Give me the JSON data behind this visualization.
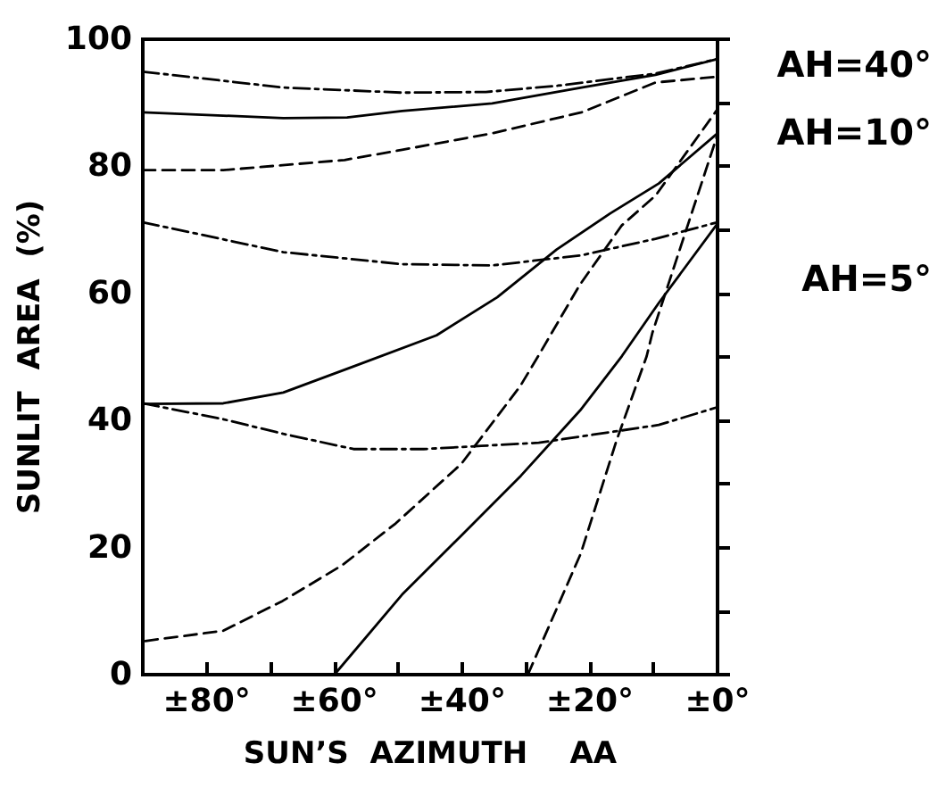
{
  "chart_data": {
    "type": "line",
    "xlabel": "SUN’S  AZIMUTH    AA",
    "ylabel": "SUNLIT  AREA  (%)",
    "xlim": [
      90,
      0
    ],
    "ylim": [
      0,
      100
    ],
    "xticks": [
      {
        "value": 80,
        "label": "±80°"
      },
      {
        "value": 70,
        "label": null
      },
      {
        "value": 60,
        "label": "±60°"
      },
      {
        "value": 50,
        "label": null
      },
      {
        "value": 40,
        "label": "±40°"
      },
      {
        "value": 30,
        "label": null
      },
      {
        "value": 20,
        "label": "±20°"
      },
      {
        "value": 10,
        "label": null
      },
      {
        "value": 0,
        "label": "±0°"
      }
    ],
    "yticks": [
      0,
      {
        "value": 10,
        "label": null
      },
      20,
      {
        "value": 30,
        "label": null
      },
      40,
      {
        "value": 50,
        "label": null
      },
      60,
      {
        "value": 70,
        "label": null
      },
      80,
      {
        "value": 90,
        "label": null
      },
      100
    ],
    "marker": "none",
    "series": [
      {
        "color": "#000000",
        "line_style": "dashdot",
        "x": [
          90,
          68,
          49.4,
          36.3,
          25,
          9.7,
          0
        ],
        "values": [
          94.9,
          92.4,
          91.6,
          91.7,
          92.7,
          94.6,
          96.9
        ]
      },
      {
        "color": "#000000",
        "line_style": "solid",
        "x": [
          90,
          68,
          58,
          49.4,
          35.3,
          21.3,
          9.7,
          0
        ],
        "values": [
          88.5,
          87.6,
          87.7,
          88.7,
          89.9,
          92.4,
          94.4,
          96.9
        ]
      },
      {
        "color": "#000000",
        "line_style": "dashed",
        "x": [
          90,
          77.4,
          58.4,
          49.4,
          35.3,
          21.3,
          9.7,
          0
        ],
        "values": [
          79.4,
          79.4,
          81.0,
          82.6,
          85.2,
          88.5,
          93.2,
          94.1
        ]
      },
      {
        "color": "#000000",
        "line_style": "dashdot",
        "x": [
          90,
          68,
          49.4,
          35.3,
          21.3,
          9.7,
          0
        ],
        "values": [
          71.2,
          66.5,
          64.6,
          64.4,
          66.0,
          68.6,
          71.2
        ]
      },
      {
        "color": "#000000",
        "line_style": "solid",
        "x": [
          90,
          77.4,
          68,
          57,
          44,
          34.5,
          25.2,
          16.8,
          9.2,
          0
        ],
        "values": [
          42.6,
          42.7,
          44.4,
          48.5,
          53.4,
          59.4,
          66.9,
          72.6,
          77.3,
          85.2
        ]
      },
      {
        "color": "#000000",
        "line_style": "dashed",
        "x": [
          89.6,
          77.4,
          68.1,
          58.8,
          50.4,
          40.1,
          30.9,
          28.1,
          21.6,
          15,
          9.7,
          0
        ],
        "values": [
          5.3,
          6.9,
          11.6,
          17.2,
          23.8,
          33.2,
          45.4,
          50.1,
          61.3,
          70.7,
          75.4,
          89
        ]
      },
      {
        "color": "#000000",
        "line_style": "dashdot",
        "x": [
          90,
          77.4,
          68,
          57,
          46,
          37,
          28,
          9.2,
          0
        ],
        "values": [
          42.7,
          40.2,
          37.9,
          35.5,
          35.5,
          36.0,
          36.5,
          39.3,
          42.1
        ]
      },
      {
        "color": "#000000",
        "line_style": "solid",
        "x": [
          60,
          49.4,
          40.1,
          30.8,
          21.5,
          15,
          9.2,
          0
        ],
        "values": [
          0,
          12.6,
          21.9,
          31.3,
          41.6,
          50.1,
          58.5,
          71
        ]
      },
      {
        "color": "#000000",
        "line_style": "dashed",
        "x": [
          29.7,
          21.4,
          15.8,
          11.1,
          10.2,
          0
        ],
        "values": [
          0,
          19.1,
          36.9,
          50.1,
          53.8,
          85
        ]
      }
    ],
    "annotations": [
      "AH=40°",
      "AH=10°",
      "AH=5°"
    ]
  }
}
